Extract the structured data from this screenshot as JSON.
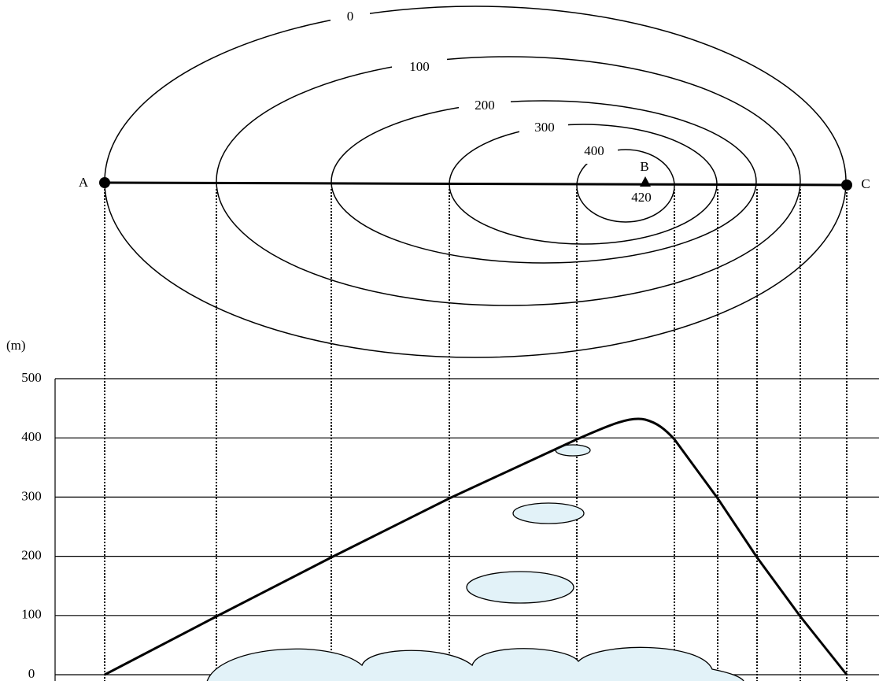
{
  "map": {
    "contour_labels": [
      "0",
      "100",
      "200",
      "300",
      "400"
    ],
    "points": {
      "a": "A",
      "b": "B",
      "c": "C",
      "b_height": "420"
    }
  },
  "profile": {
    "unit": "(m)",
    "yticks": [
      500,
      400,
      300,
      200,
      100,
      0
    ]
  }
}
